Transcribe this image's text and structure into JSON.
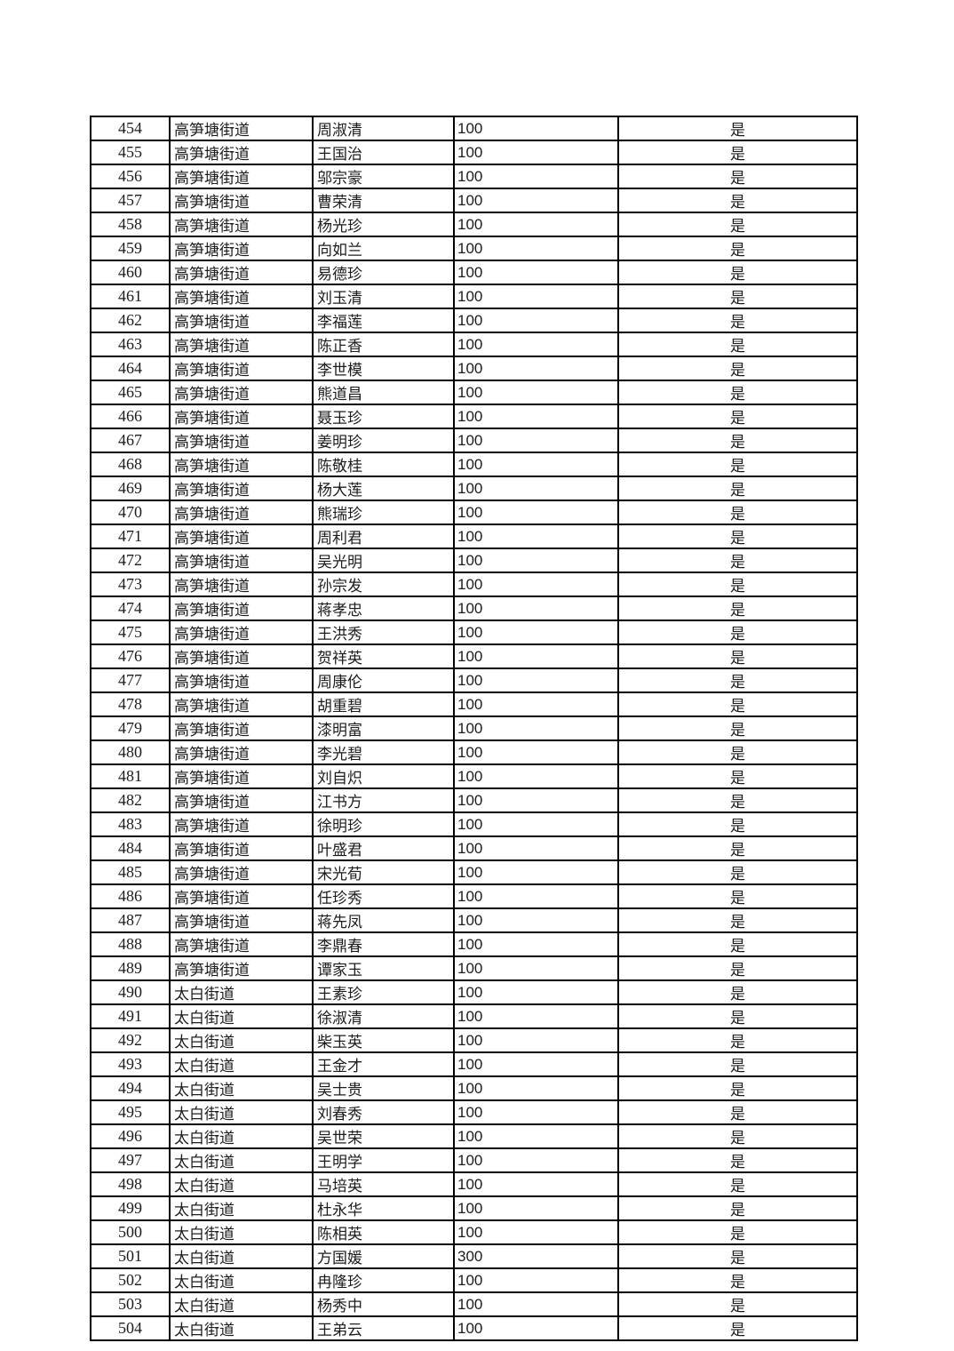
{
  "table": {
    "rows": [
      {
        "index": "454",
        "street": "高笋塘街道",
        "name": "周淑清",
        "amount": "100",
        "confirmed": "是"
      },
      {
        "index": "455",
        "street": "高笋塘街道",
        "name": "王国治",
        "amount": "100",
        "confirmed": "是"
      },
      {
        "index": "456",
        "street": "高笋塘街道",
        "name": "邬宗豪",
        "amount": "100",
        "confirmed": "是"
      },
      {
        "index": "457",
        "street": "高笋塘街道",
        "name": "曹荣清",
        "amount": "100",
        "confirmed": "是"
      },
      {
        "index": "458",
        "street": "高笋塘街道",
        "name": "杨光珍",
        "amount": "100",
        "confirmed": "是"
      },
      {
        "index": "459",
        "street": "高笋塘街道",
        "name": "向如兰",
        "amount": "100",
        "confirmed": "是"
      },
      {
        "index": "460",
        "street": "高笋塘街道",
        "name": "易德珍",
        "amount": "100",
        "confirmed": "是"
      },
      {
        "index": "461",
        "street": "高笋塘街道",
        "name": "刘玉清",
        "amount": "100",
        "confirmed": "是"
      },
      {
        "index": "462",
        "street": "高笋塘街道",
        "name": "李福莲",
        "amount": "100",
        "confirmed": "是"
      },
      {
        "index": "463",
        "street": "高笋塘街道",
        "name": "陈正香",
        "amount": "100",
        "confirmed": "是"
      },
      {
        "index": "464",
        "street": "高笋塘街道",
        "name": "李世模",
        "amount": "100",
        "confirmed": "是"
      },
      {
        "index": "465",
        "street": "高笋塘街道",
        "name": "熊道昌",
        "amount": "100",
        "confirmed": "是"
      },
      {
        "index": "466",
        "street": "高笋塘街道",
        "name": "聂玉珍",
        "amount": "100",
        "confirmed": "是"
      },
      {
        "index": "467",
        "street": "高笋塘街道",
        "name": "姜明珍",
        "amount": "100",
        "confirmed": "是"
      },
      {
        "index": "468",
        "street": "高笋塘街道",
        "name": "陈敬桂",
        "amount": "100",
        "confirmed": "是"
      },
      {
        "index": "469",
        "street": "高笋塘街道",
        "name": "杨大莲",
        "amount": "100",
        "confirmed": "是"
      },
      {
        "index": "470",
        "street": "高笋塘街道",
        "name": "熊瑞珍",
        "amount": "100",
        "confirmed": "是"
      },
      {
        "index": "471",
        "street": "高笋塘街道",
        "name": "周利君",
        "amount": "100",
        "confirmed": "是"
      },
      {
        "index": "472",
        "street": "高笋塘街道",
        "name": "吴光明",
        "amount": "100",
        "confirmed": "是"
      },
      {
        "index": "473",
        "street": "高笋塘街道",
        "name": "孙宗发",
        "amount": "100",
        "confirmed": "是"
      },
      {
        "index": "474",
        "street": "高笋塘街道",
        "name": "蒋孝忠",
        "amount": "100",
        "confirmed": "是"
      },
      {
        "index": "475",
        "street": "高笋塘街道",
        "name": "王洪秀",
        "amount": "100",
        "confirmed": "是"
      },
      {
        "index": "476",
        "street": "高笋塘街道",
        "name": "贺祥英",
        "amount": "100",
        "confirmed": "是"
      },
      {
        "index": "477",
        "street": "高笋塘街道",
        "name": "周康伦",
        "amount": "100",
        "confirmed": "是"
      },
      {
        "index": "478",
        "street": "高笋塘街道",
        "name": "胡重碧",
        "amount": "100",
        "confirmed": "是"
      },
      {
        "index": "479",
        "street": "高笋塘街道",
        "name": "漆明富",
        "amount": "100",
        "confirmed": "是"
      },
      {
        "index": "480",
        "street": "高笋塘街道",
        "name": "李光碧",
        "amount": "100",
        "confirmed": "是"
      },
      {
        "index": "481",
        "street": "高笋塘街道",
        "name": "刘自炽",
        "amount": "100",
        "confirmed": "是"
      },
      {
        "index": "482",
        "street": "高笋塘街道",
        "name": "江书方",
        "amount": "100",
        "confirmed": "是"
      },
      {
        "index": "483",
        "street": "高笋塘街道",
        "name": "徐明珍",
        "amount": "100",
        "confirmed": "是"
      },
      {
        "index": "484",
        "street": "高笋塘街道",
        "name": "叶盛君",
        "amount": "100",
        "confirmed": "是"
      },
      {
        "index": "485",
        "street": "高笋塘街道",
        "name": "宋光荀",
        "amount": "100",
        "confirmed": "是"
      },
      {
        "index": "486",
        "street": "高笋塘街道",
        "name": "任珍秀",
        "amount": "100",
        "confirmed": "是"
      },
      {
        "index": "487",
        "street": "高笋塘街道",
        "name": "蒋先凤",
        "amount": "100",
        "confirmed": "是"
      },
      {
        "index": "488",
        "street": "高笋塘街道",
        "name": "李鼎春",
        "amount": "100",
        "confirmed": "是"
      },
      {
        "index": "489",
        "street": "高笋塘街道",
        "name": "谭家玉",
        "amount": "100",
        "confirmed": "是"
      },
      {
        "index": "490",
        "street": "太白街道",
        "name": "王素珍",
        "amount": "100",
        "confirmed": "是"
      },
      {
        "index": "491",
        "street": "太白街道",
        "name": "徐淑清",
        "amount": "100",
        "confirmed": "是"
      },
      {
        "index": "492",
        "street": "太白街道",
        "name": "柴玉英",
        "amount": "100",
        "confirmed": "是"
      },
      {
        "index": "493",
        "street": "太白街道",
        "name": "王金才",
        "amount": "100",
        "confirmed": "是"
      },
      {
        "index": "494",
        "street": "太白街道",
        "name": "吴士贵",
        "amount": "100",
        "confirmed": "是"
      },
      {
        "index": "495",
        "street": "太白街道",
        "name": "刘春秀",
        "amount": "100",
        "confirmed": "是"
      },
      {
        "index": "496",
        "street": "太白街道",
        "name": "吴世荣",
        "amount": "100",
        "confirmed": "是"
      },
      {
        "index": "497",
        "street": "太白街道",
        "name": "王明学",
        "amount": "100",
        "confirmed": "是"
      },
      {
        "index": "498",
        "street": "太白街道",
        "name": "马培英",
        "amount": "100",
        "confirmed": "是"
      },
      {
        "index": "499",
        "street": "太白街道",
        "name": "杜永华",
        "amount": "100",
        "confirmed": "是"
      },
      {
        "index": "500",
        "street": "太白街道",
        "name": "陈相英",
        "amount": "100",
        "confirmed": "是"
      },
      {
        "index": "501",
        "street": "太白街道",
        "name": "方国媛",
        "amount": "300",
        "confirmed": "是"
      },
      {
        "index": "502",
        "street": "太白街道",
        "name": "冉隆珍",
        "amount": "100",
        "confirmed": "是"
      },
      {
        "index": "503",
        "street": "太白街道",
        "name": "杨秀中",
        "amount": "100",
        "confirmed": "是"
      },
      {
        "index": "504",
        "street": "太白街道",
        "name": "王弟云",
        "amount": "100",
        "confirmed": "是"
      }
    ],
    "border_color": "#000000",
    "text_color": "#1c1c1c",
    "background_color": "#ffffff"
  }
}
